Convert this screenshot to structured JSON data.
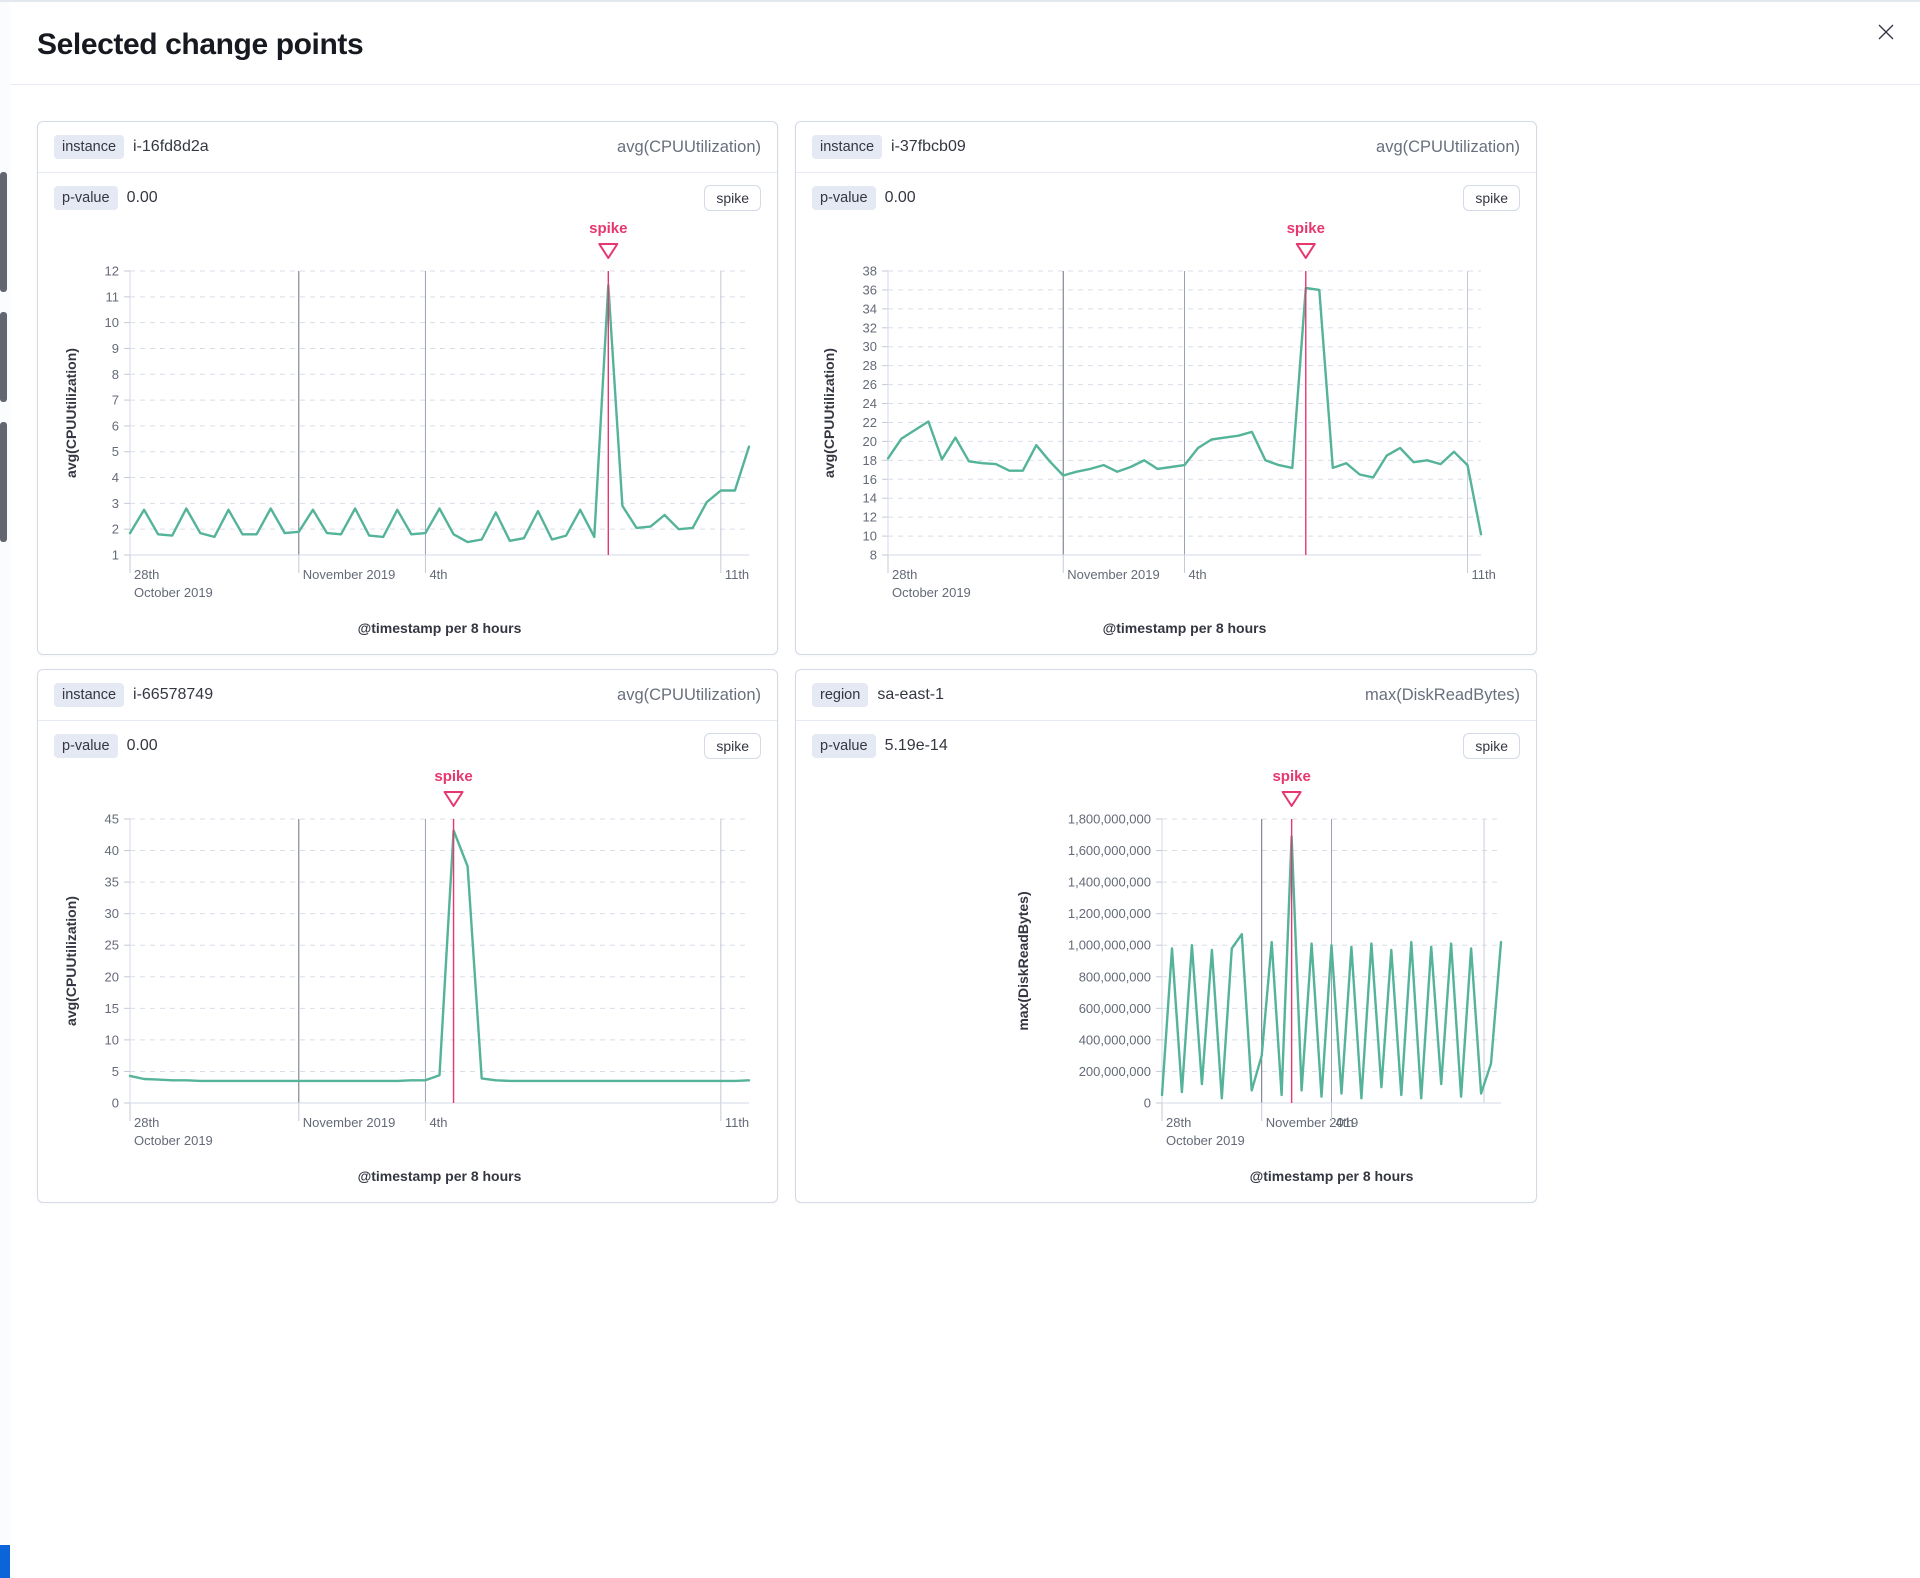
{
  "modal": {
    "title": "Selected change points"
  },
  "colors": {
    "line": "#54B399",
    "annotation": "#E7376F",
    "grid_dashed": "#D9DDE8",
    "axis": "#D3DAE6",
    "tick": "#C4CAD6"
  },
  "panels": [
    {
      "field_label": "instance",
      "field_value": "i-16fd8d2a",
      "metric": "avg(CPUUtilization)",
      "p_label": "p-value",
      "p_value": "0.00",
      "type_badge": "spike"
    },
    {
      "field_label": "instance",
      "field_value": "i-37fbcb09",
      "metric": "avg(CPUUtilization)",
      "p_label": "p-value",
      "p_value": "0.00",
      "type_badge": "spike"
    },
    {
      "field_label": "instance",
      "field_value": "i-66578749",
      "metric": "avg(CPUUtilization)",
      "p_label": "p-value",
      "p_value": "0.00",
      "type_badge": "spike"
    },
    {
      "field_label": "region",
      "field_value": "sa-east-1",
      "metric": "max(DiskReadBytes)",
      "p_label": "p-value",
      "p_value": "5.19e-14",
      "type_badge": "spike"
    }
  ],
  "chart_data": [
    {
      "type": "line",
      "title": "instance i-16fd8d2a",
      "ylabel": "avg(CPUUtilization)",
      "xlabel": "@timestamp per 8 hours",
      "annotation_label": "spike",
      "ylim": [
        1,
        12
      ],
      "ystep": 1,
      "yformat": "plain",
      "grid": true,
      "legend": "none",
      "spike_f": 0.7727,
      "x_ticks": [
        {
          "f": 0.0,
          "line1": "28th",
          "line2": "October 2019",
          "stroke": "#CDD2DD"
        },
        {
          "f": 0.2727,
          "line1": "November 2019",
          "stroke": "#69707D"
        },
        {
          "f": 0.4773,
          "line1": "4th",
          "stroke": "#9AA2B2"
        },
        {
          "f": 0.9545,
          "line1": "11th",
          "stroke": "#C2C8D4"
        }
      ],
      "values": [
        1.85,
        2.75,
        1.8,
        1.75,
        2.8,
        1.85,
        1.7,
        2.75,
        1.8,
        1.8,
        2.8,
        1.85,
        1.9,
        2.75,
        1.85,
        1.8,
        2.8,
        1.75,
        1.7,
        2.75,
        1.8,
        1.85,
        2.8,
        1.8,
        1.5,
        1.6,
        2.65,
        1.55,
        1.65,
        2.7,
        1.6,
        1.75,
        2.75,
        1.7,
        11.45,
        2.9,
        2.05,
        2.1,
        2.55,
        2.0,
        2.05,
        3.05,
        3.5,
        3.5,
        5.2
      ],
      "margins": {
        "l": 76,
        "r": 14,
        "ytitle_x": 22
      }
    },
    {
      "type": "line",
      "title": "instance i-37fbcb09",
      "ylabel": "avg(CPUUtilization)",
      "xlabel": "@timestamp per 8 hours",
      "annotation_label": "spike",
      "ylim": [
        8,
        38
      ],
      "ystep": 2,
      "yformat": "plain",
      "grid": true,
      "legend": "none",
      "spike_f": 0.7045,
      "x_ticks": [
        {
          "f": 0.0,
          "line1": "28th",
          "line2": "October 2019",
          "stroke": "#CDD2DD"
        },
        {
          "f": 0.2955,
          "line1": "November 2019",
          "stroke": "#69707D"
        },
        {
          "f": 0.5,
          "line1": "4th",
          "stroke": "#9AA2B2"
        },
        {
          "f": 0.9773,
          "line1": "11th",
          "stroke": "#C2C8D4"
        }
      ],
      "values": [
        18.2,
        20.3,
        21.2,
        22.1,
        18.1,
        20.4,
        17.9,
        17.7,
        17.6,
        16.9,
        16.9,
        19.6,
        17.9,
        16.4,
        16.8,
        17.1,
        17.5,
        16.8,
        17.3,
        18.0,
        17.1,
        17.3,
        17.5,
        19.3,
        20.2,
        20.4,
        20.6,
        21.0,
        18.0,
        17.5,
        17.2,
        36.2,
        36.0,
        17.2,
        17.7,
        16.5,
        16.2,
        18.5,
        19.3,
        17.8,
        18.0,
        17.6,
        18.9,
        17.5,
        10.2
      ],
      "margins": {
        "l": 76,
        "r": 40,
        "ytitle_x": 22
      }
    },
    {
      "type": "line",
      "title": "instance i-66578749",
      "ylabel": "avg(CPUUtilization)",
      "xlabel": "@timestamp per 8 hours",
      "annotation_label": "spike",
      "ylim": [
        0,
        45
      ],
      "ystep": 5,
      "yformat": "plain",
      "grid": true,
      "legend": "none",
      "spike_f": 0.5227,
      "x_ticks": [
        {
          "f": 0.0,
          "line1": "28th",
          "line2": "October 2019",
          "stroke": "#CDD2DD"
        },
        {
          "f": 0.2727,
          "line1": "November 2019",
          "stroke": "#69707D"
        },
        {
          "f": 0.4773,
          "line1": "4th",
          "stroke": "#9AA2B2"
        },
        {
          "f": 0.9545,
          "line1": "11th",
          "stroke": "#C2C8D4"
        }
      ],
      "values": [
        4.3,
        3.8,
        3.7,
        3.6,
        3.6,
        3.5,
        3.5,
        3.5,
        3.5,
        3.5,
        3.5,
        3.5,
        3.5,
        3.5,
        3.5,
        3.5,
        3.5,
        3.5,
        3.5,
        3.5,
        3.6,
        3.6,
        4.4,
        43.2,
        37.5,
        3.9,
        3.6,
        3.5,
        3.5,
        3.5,
        3.5,
        3.5,
        3.5,
        3.5,
        3.5,
        3.5,
        3.5,
        3.5,
        3.5,
        3.5,
        3.5,
        3.5,
        3.5,
        3.5,
        3.6
      ],
      "margins": {
        "l": 76,
        "r": 14,
        "ytitle_x": 22
      }
    },
    {
      "type": "line",
      "title": "region sa-east-1",
      "ylabel": "max(DiskReadBytes)",
      "xlabel": "@timestamp per 8 hours",
      "annotation_label": "spike",
      "ylim": [
        0,
        1800000000
      ],
      "ystep": 200000000,
      "yformat": "comma",
      "grid": true,
      "legend": "none",
      "spike_f": 0.3824,
      "x_ticks": [
        {
          "f": 0.0,
          "line1": "28th",
          "line2": "October 2019",
          "stroke": "#CDD2DD"
        },
        {
          "f": 0.2941,
          "line1": "November 2019",
          "stroke": "#69707D"
        },
        {
          "f": 0.5,
          "line1": "4th",
          "stroke": "#9AA2B2"
        }
      ],
      "extra_gridlines": [
        {
          "f": 0.95,
          "stroke": "#C9CEDA"
        }
      ],
      "values": [
        50000000,
        980000000,
        70000000,
        1000000000,
        120000000,
        970000000,
        30000000,
        980000000,
        1070000000,
        80000000,
        300000000,
        1020000000,
        50000000,
        1690000000,
        80000000,
        1010000000,
        40000000,
        1000000000,
        60000000,
        990000000,
        30000000,
        1010000000,
        100000000,
        970000000,
        50000000,
        1020000000,
        30000000,
        990000000,
        120000000,
        1010000000,
        40000000,
        980000000,
        60000000,
        250000000,
        1020000000
      ],
      "margins": {
        "l": 350,
        "r": 20,
        "ytitle_x": 216
      }
    }
  ]
}
